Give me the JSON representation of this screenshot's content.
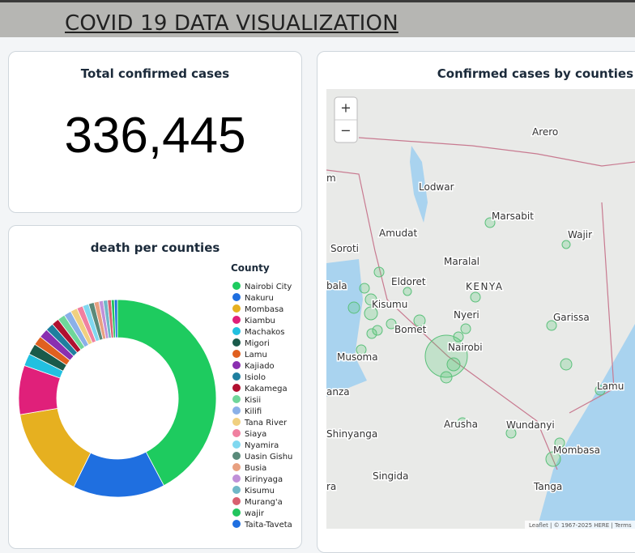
{
  "header": {
    "title": "COVID 19 DATA VISUALIZATION"
  },
  "kpi": {
    "title": "Total confirmed cases",
    "value": "336,445"
  },
  "chart_data": {
    "type": "donut",
    "title": "death per counties",
    "legend_title": "County",
    "categories": [
      "Nairobi City",
      "Nakuru",
      "Mombasa",
      "Kiambu",
      "Machakos",
      "Migori",
      "Lamu",
      "Kajiado",
      "Isiolo",
      "Kakamega",
      "Kisii",
      "Kilifi",
      "Tana River",
      "Siaya",
      "Nyamira",
      "Uasin Gishu",
      "Busia",
      "Kirinyaga",
      "Kisumu",
      "Murang'a",
      "wajir",
      "Taita-Taveta"
    ],
    "values": [
      42,
      15,
      15,
      8,
      2,
      1.8,
      1.5,
      1.5,
      1.3,
      1.2,
      1.2,
      1.2,
      1.1,
      1,
      1,
      0.9,
      0.8,
      0.7,
      0.7,
      0.6,
      0.5,
      0.5
    ],
    "colors": [
      "#1ecb5f",
      "#1f6fe0",
      "#e6b020",
      "#e0207a",
      "#22c0e0",
      "#1a5a4a",
      "#e06020",
      "#8a2fb0",
      "#1f7f9f",
      "#b01030",
      "#6fd69a",
      "#8ab0e8",
      "#f0d080",
      "#f080a0",
      "#80d8f0",
      "#5a8a7a",
      "#e8a080",
      "#c090d8",
      "#70b8c8",
      "#d86070",
      "#22c55e",
      "#1f6fe0"
    ]
  },
  "map": {
    "title": "Confirmed cases by counties",
    "zoom_in": "+",
    "zoom_out": "−",
    "attribution": "Leaflet | © 1967-2025 HERE | Terms",
    "places": [
      "Arero",
      "Lodwar",
      "Marsabit",
      "Amudat",
      "Wajir",
      "Soroti",
      "Maralal",
      "Eldoret",
      "KENYA",
      "bala",
      "Kisumu",
      "Nyeri",
      "Garissa",
      "Bomet",
      "Nairobi",
      "Musoma",
      "Lamu",
      "anza",
      "Arusha",
      "Wundanyi",
      "Shinyanga",
      "Mombasa",
      "Singida",
      "Tanga",
      "ra",
      "m"
    ]
  }
}
